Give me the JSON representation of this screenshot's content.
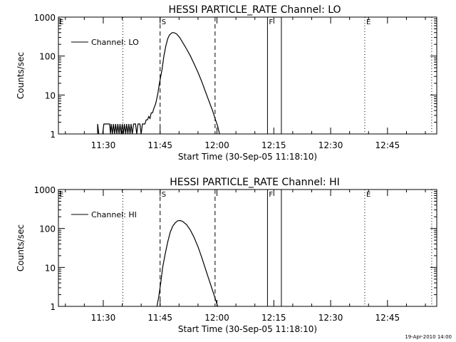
{
  "footer": {
    "timestamp": "19-Apr-2010 14:00"
  },
  "chart_data": [
    {
      "type": "line",
      "title": "HESSI PARTICLE_RATE Channel: LO",
      "xlabel": "Start Time (30-Sep-05 11:18:10)",
      "ylabel": "Counts/sec",
      "yscale": "log",
      "ylim": [
        1,
        1000
      ],
      "xlim": [
        "11:18:10",
        "12:58:00"
      ],
      "x_ticks": [
        "11:30",
        "11:45",
        "12:00",
        "12:15",
        "12:30",
        "12:45"
      ],
      "y_ticks": [
        "1",
        "10",
        "100",
        "1000"
      ],
      "legend": {
        "position": "top-left",
        "entries": [
          "Channel: LO"
        ]
      },
      "markers": [
        {
          "time": "11:35:10",
          "style": "dotted",
          "label": ""
        },
        {
          "time": "11:45:00",
          "style": "dashed",
          "label": "S"
        },
        {
          "time": "11:59:30",
          "style": "dashed",
          "label": ""
        },
        {
          "time": "12:13:20",
          "style": "solid",
          "label": "F"
        },
        {
          "time": "12:17:00",
          "style": "solid",
          "label": ""
        },
        {
          "time": "12:39:00",
          "style": "dotted",
          "label": "E"
        },
        {
          "time": "12:56:40",
          "style": "dotted",
          "label": ""
        }
      ],
      "series": [
        {
          "name": "Channel: LO",
          "segments": [
            [
              [
                "11:28:30",
                1
              ],
              [
                "11:28:30",
                1.8
              ],
              [
                "11:28:50",
                1
              ]
            ],
            [
              [
                "11:29:50",
                1
              ],
              [
                "11:30:10",
                1.8
              ],
              [
                "11:31:40",
                1.8
              ],
              [
                "11:31:55",
                1
              ],
              [
                "11:32:05",
                1.8
              ],
              [
                "11:32:25",
                1
              ],
              [
                "11:32:40",
                1.8
              ],
              [
                "11:33:00",
                1
              ],
              [
                "11:33:15",
                1.8
              ],
              [
                "11:33:35",
                1
              ],
              [
                "11:33:50",
                1.8
              ],
              [
                "11:34:10",
                1
              ],
              [
                "11:34:25",
                1.8
              ],
              [
                "11:34:45",
                1
              ],
              [
                "11:35:00",
                1.8
              ],
              [
                "11:35:20",
                1
              ],
              [
                "11:35:35",
                1.8
              ],
              [
                "11:35:55",
                1
              ],
              [
                "11:36:10",
                1.8
              ],
              [
                "11:36:30",
                1
              ],
              [
                "11:36:45",
                1.8
              ],
              [
                "11:37:05",
                1
              ],
              [
                "11:37:20",
                1.8
              ],
              [
                "11:37:40",
                1
              ],
              [
                "11:38:00",
                1.8
              ],
              [
                "11:38:30",
                1.8
              ],
              [
                "11:38:50",
                1
              ],
              [
                "11:39:10",
                1.8
              ],
              [
                "11:39:40",
                1.8
              ],
              [
                "11:40:00",
                1
              ],
              [
                "11:40:20",
                1.8
              ],
              [
                "11:41:00",
                1.8
              ],
              [
                "11:41:20",
                2.3
              ],
              [
                "11:41:40",
                2.3
              ],
              [
                "11:42:00",
                2.8
              ],
              [
                "11:42:20",
                2.5
              ],
              [
                "11:42:40",
                3.5
              ],
              [
                "11:43:00",
                3.5
              ],
              [
                "11:43:20",
                4.5
              ],
              [
                "11:43:50",
                6
              ],
              [
                "11:44:20",
                10
              ],
              [
                "11:44:50",
                20
              ],
              [
                "11:45:30",
                45
              ],
              [
                "11:46:00",
                100
              ],
              [
                "11:46:30",
                180
              ],
              [
                "11:47:00",
                280
              ],
              [
                "11:47:30",
                350
              ],
              [
                "11:48:10",
                400
              ],
              [
                "11:48:40",
                400
              ],
              [
                "11:49:20",
                370
              ],
              [
                "11:50:10",
                300
              ],
              [
                "11:51:00",
                220
              ],
              [
                "11:52:00",
                150
              ],
              [
                "11:53:00",
                100
              ],
              [
                "11:54:00",
                62
              ],
              [
                "11:55:00",
                38
              ],
              [
                "11:56:00",
                22
              ],
              [
                "11:57:00",
                12
              ],
              [
                "11:58:00",
                6.5
              ],
              [
                "11:58:50",
                4
              ],
              [
                "11:59:30",
                2.5
              ],
              [
                "12:00:10",
                1.6
              ],
              [
                "12:00:40",
                1
              ]
            ]
          ]
        }
      ]
    },
    {
      "type": "line",
      "title": "HESSI PARTICLE_RATE Channel: HI",
      "xlabel": "Start Time (30-Sep-05 11:18:10)",
      "ylabel": "Counts/sec",
      "yscale": "log",
      "ylim": [
        1,
        1000
      ],
      "xlim": [
        "11:18:10",
        "12:58:00"
      ],
      "x_ticks": [
        "11:30",
        "11:45",
        "12:00",
        "12:15",
        "12:30",
        "12:45"
      ],
      "y_ticks": [
        "1",
        "10",
        "100",
        "1000"
      ],
      "legend": {
        "position": "top-left",
        "entries": [
          "Channel: HI"
        ]
      },
      "markers": [
        {
          "time": "11:35:10",
          "style": "dotted",
          "label": ""
        },
        {
          "time": "11:45:00",
          "style": "dashed",
          "label": "S"
        },
        {
          "time": "11:59:30",
          "style": "dashed",
          "label": ""
        },
        {
          "time": "12:13:20",
          "style": "solid",
          "label": "F"
        },
        {
          "time": "12:17:00",
          "style": "solid",
          "label": ""
        },
        {
          "time": "12:39:00",
          "style": "dotted",
          "label": "E"
        },
        {
          "time": "12:56:40",
          "style": "dotted",
          "label": ""
        }
      ],
      "series": [
        {
          "name": "Channel: HI",
          "segments": [
            [
              [
                "11:44:10",
                1
              ],
              [
                "11:44:40",
                1.8
              ],
              [
                "11:45:10",
                4
              ],
              [
                "11:45:40",
                10
              ],
              [
                "11:46:20",
                22
              ],
              [
                "11:47:00",
                45
              ],
              [
                "11:47:40",
                80
              ],
              [
                "11:48:20",
                115
              ],
              [
                "11:49:00",
                140
              ],
              [
                "11:49:40",
                158
              ],
              [
                "11:50:20",
                160
              ],
              [
                "11:51:00",
                150
              ],
              [
                "11:52:00",
                125
              ],
              [
                "11:53:00",
                90
              ],
              [
                "11:54:00",
                58
              ],
              [
                "11:55:00",
                34
              ],
              [
                "11:56:00",
                18
              ],
              [
                "11:57:00",
                9
              ],
              [
                "11:58:00",
                4.5
              ],
              [
                "11:59:00",
                2.3
              ],
              [
                "11:59:50",
                1.3
              ],
              [
                "12:00:10",
                1
              ]
            ]
          ]
        }
      ]
    }
  ]
}
